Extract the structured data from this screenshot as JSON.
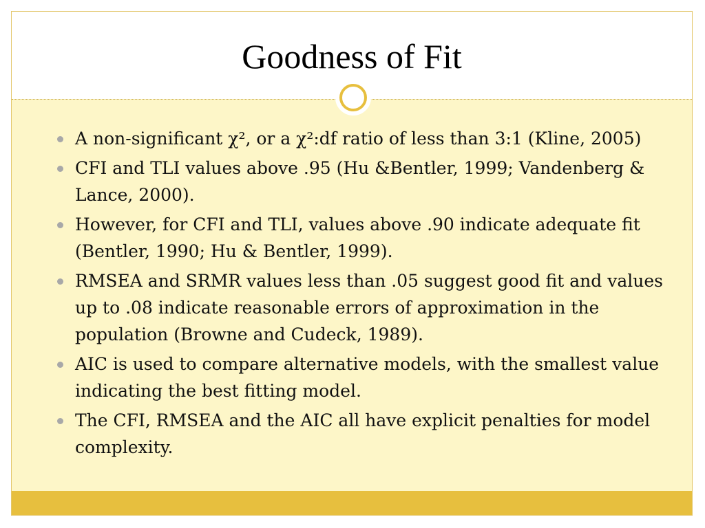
{
  "slide": {
    "title": "Goodness of Fit",
    "bullets": [
      "A non-significant χ², or a χ²:df ratio of less than 3:1 (Kline, 2005)",
      "CFI and TLI values above .95 (Hu &Bentler, 1999; Vandenberg & Lance, 2000).",
      "However, for CFI and TLI, values above .90 indicate adequate fit (Bentler, 1990; Hu & Bentler, 1999).",
      "RMSEA and SRMR values less than .05 suggest good fit and values up to .08 indicate reasonable errors of approximation in the population (Browne and Cudeck, 1989).",
      "AIC is used to compare alternative models, with the smallest value indicating the best fitting model.",
      "The CFI, RMSEA and the AIC all have explicit penalties for model complexity."
    ]
  },
  "colors": {
    "accent": "#e7bf3e",
    "content_background": "#fdf6c8",
    "bullet": "#a8a8a8"
  }
}
